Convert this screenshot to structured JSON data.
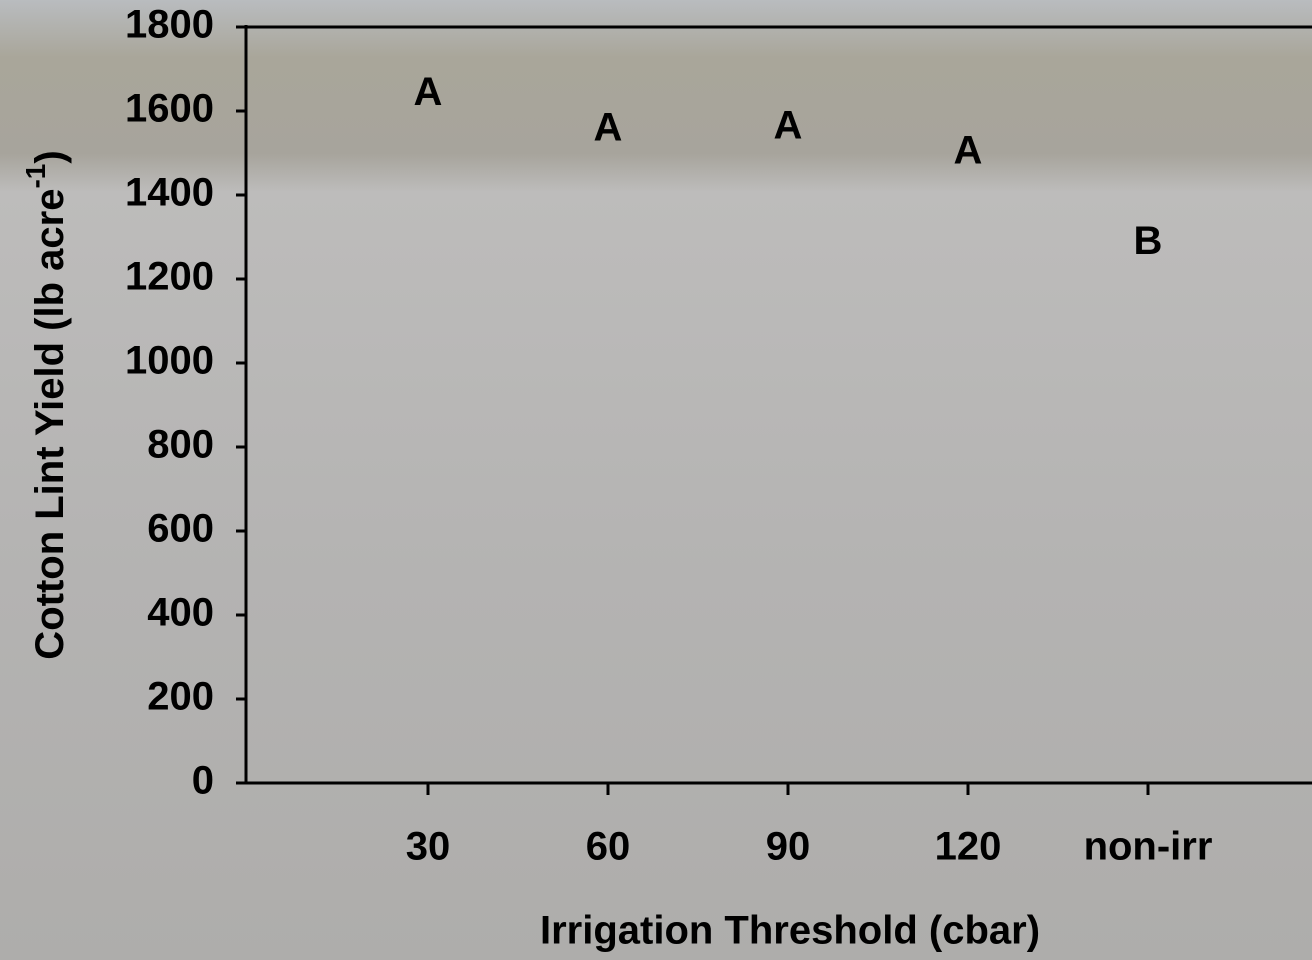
{
  "chart_data": {
    "type": "letters",
    "xlabel": "Irrigation Threshold (cbar)",
    "ylabel": "Cotton Lint Yield (lb acre",
    "ylabel_superscript": "-1",
    "ylabel_end": ")",
    "categories": [
      "30",
      "60",
      "90",
      "120",
      "non-irr"
    ],
    "letters": [
      "A",
      "A",
      "A",
      "A",
      "B"
    ],
    "letter_heights": [
      1640,
      1555,
      1560,
      1500,
      1285
    ],
    "ylim": [
      0,
      1800
    ],
    "yticks": [
      0,
      200,
      400,
      600,
      800,
      1000,
      1200,
      1400,
      1600,
      1800
    ]
  }
}
